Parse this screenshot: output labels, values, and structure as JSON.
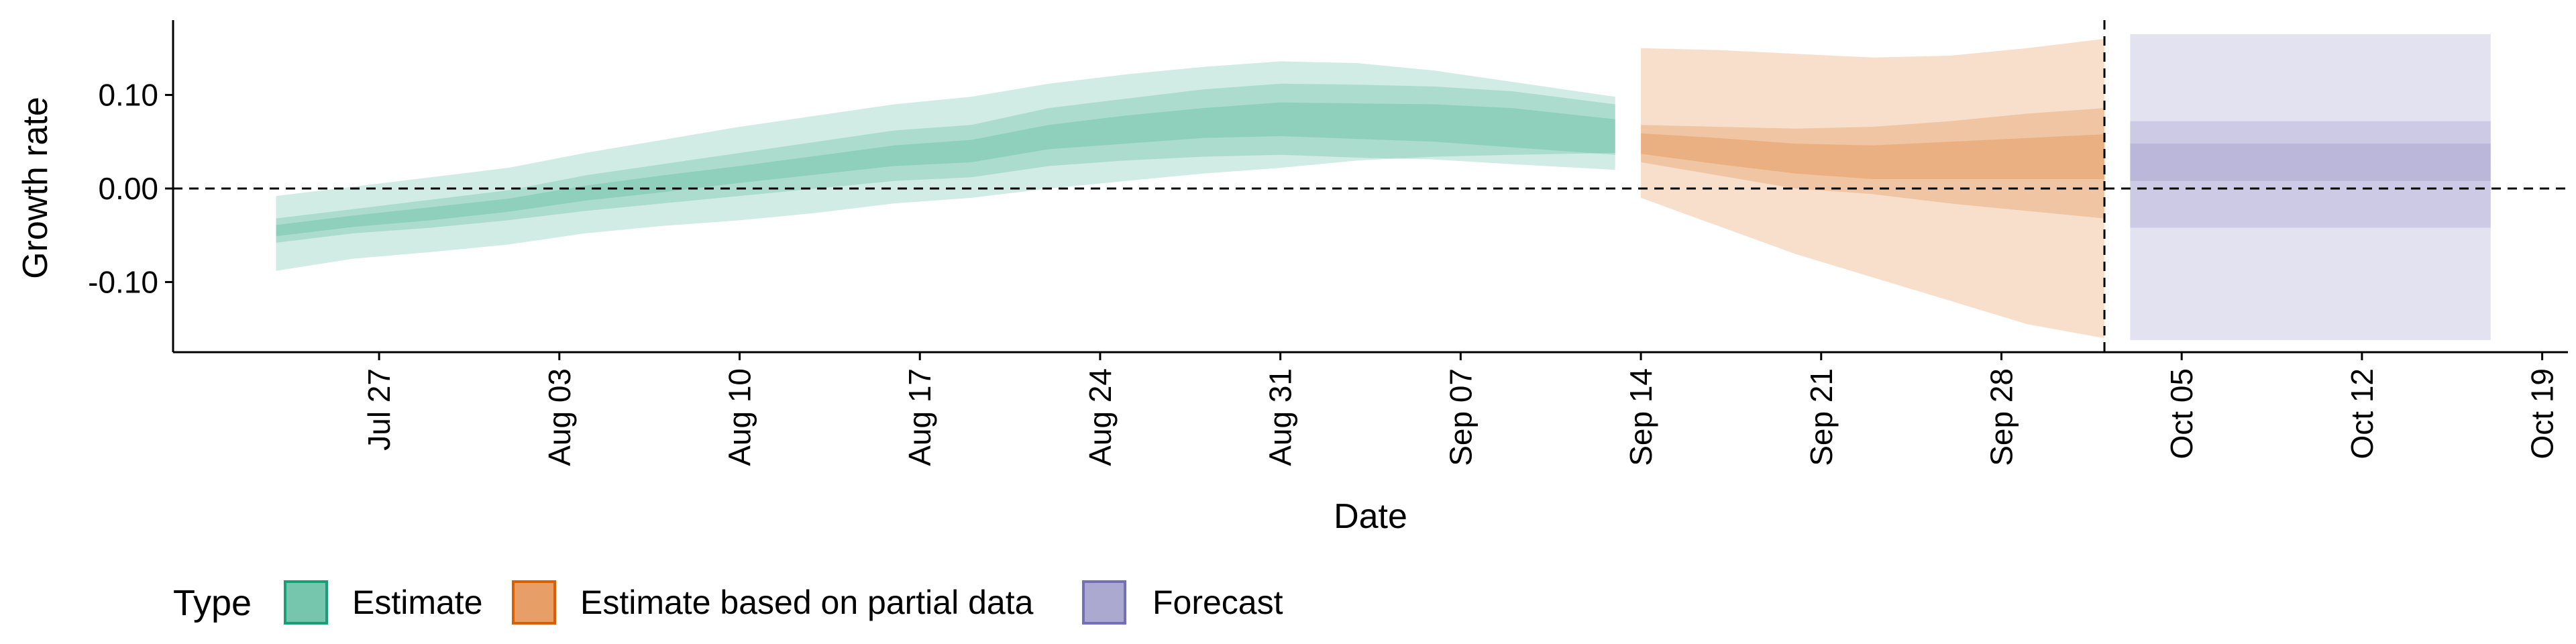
{
  "chart_data": {
    "type": "area",
    "title": "",
    "xlabel": "Date",
    "ylabel": "Growth rate",
    "xlim": [
      "2020-07-19",
      "2020-10-20"
    ],
    "ylim": [
      -0.175,
      0.18
    ],
    "y_ticks": [
      {
        "value": 0.1,
        "label": "0.10"
      },
      {
        "value": 0.0,
        "label": "0.00"
      },
      {
        "value": -0.1,
        "label": "-0.10"
      }
    ],
    "x_ticks": [
      {
        "value": "2020-07-27",
        "label": "Jul 27"
      },
      {
        "value": "2020-08-03",
        "label": "Aug 03"
      },
      {
        "value": "2020-08-10",
        "label": "Aug 10"
      },
      {
        "value": "2020-08-17",
        "label": "Aug 17"
      },
      {
        "value": "2020-08-24",
        "label": "Aug 24"
      },
      {
        "value": "2020-08-31",
        "label": "Aug 31"
      },
      {
        "value": "2020-09-07",
        "label": "Sep 07"
      },
      {
        "value": "2020-09-14",
        "label": "Sep 14"
      },
      {
        "value": "2020-09-21",
        "label": "Sep 21"
      },
      {
        "value": "2020-09-28",
        "label": "Sep 28"
      },
      {
        "value": "2020-10-05",
        "label": "Oct 05"
      },
      {
        "value": "2020-10-12",
        "label": "Oct 12"
      },
      {
        "value": "2020-10-19",
        "label": "Oct 19"
      }
    ],
    "reference_lines": [
      {
        "axis": "y",
        "value": 0.0,
        "style": "dashed"
      },
      {
        "axis": "x",
        "value": "2020-10-02",
        "style": "dashed"
      }
    ],
    "legend": {
      "title": "Type",
      "position": "bottom-left"
    },
    "series": [
      {
        "name": "Estimate",
        "color": "#1b9e77",
        "x": [
          "2020-07-23",
          "2020-07-26",
          "2020-07-29",
          "2020-08-01",
          "2020-08-04",
          "2020-08-07",
          "2020-08-10",
          "2020-08-13",
          "2020-08-16",
          "2020-08-19",
          "2020-08-22",
          "2020-08-25",
          "2020-08-28",
          "2020-08-31",
          "2020-09-03",
          "2020-09-06",
          "2020-09-09",
          "2020-09-13"
        ],
        "median": [
          -0.045,
          -0.035,
          -0.027,
          -0.018,
          -0.005,
          0.005,
          0.015,
          0.025,
          0.035,
          0.04,
          0.055,
          0.063,
          0.07,
          0.074,
          0.072,
          0.07,
          0.065,
          0.055
        ],
        "ci20": [
          [
            -0.051,
            -0.039
          ],
          [
            -0.041,
            -0.029
          ],
          [
            -0.034,
            -0.02
          ],
          [
            -0.025,
            -0.011
          ],
          [
            -0.013,
            0.003
          ],
          [
            -0.004,
            0.014
          ],
          [
            0.006,
            0.024
          ],
          [
            0.015,
            0.035
          ],
          [
            0.024,
            0.046
          ],
          [
            0.028,
            0.052
          ],
          [
            0.042,
            0.068
          ],
          [
            0.048,
            0.078
          ],
          [
            0.054,
            0.086
          ],
          [
            0.056,
            0.092
          ],
          [
            0.053,
            0.091
          ],
          [
            0.05,
            0.09
          ],
          [
            0.044,
            0.086
          ],
          [
            0.036,
            0.074
          ]
        ],
        "ci50": [
          [
            -0.058,
            -0.032
          ],
          [
            -0.048,
            -0.022
          ],
          [
            -0.042,
            -0.012
          ],
          [
            -0.034,
            -0.002
          ],
          [
            -0.024,
            0.014
          ],
          [
            -0.016,
            0.026
          ],
          [
            -0.008,
            0.038
          ],
          [
            0.0,
            0.05
          ],
          [
            0.008,
            0.062
          ],
          [
            0.012,
            0.068
          ],
          [
            0.024,
            0.086
          ],
          [
            0.03,
            0.096
          ],
          [
            0.034,
            0.106
          ],
          [
            0.036,
            0.112
          ],
          [
            0.033,
            0.111
          ],
          [
            0.031,
            0.109
          ],
          [
            0.026,
            0.104
          ],
          [
            0.02,
            0.09
          ]
        ],
        "ci90": [
          [
            -0.088,
            -0.008
          ],
          [
            -0.075,
            0.002
          ],
          [
            -0.068,
            0.012
          ],
          [
            -0.06,
            0.022
          ],
          [
            -0.048,
            0.038
          ],
          [
            -0.04,
            0.052
          ],
          [
            -0.034,
            0.066
          ],
          [
            -0.026,
            0.078
          ],
          [
            -0.016,
            0.09
          ],
          [
            -0.01,
            0.098
          ],
          [
            0.0,
            0.112
          ],
          [
            0.008,
            0.122
          ],
          [
            0.016,
            0.13
          ],
          [
            0.022,
            0.136
          ],
          [
            0.03,
            0.134
          ],
          [
            0.034,
            0.126
          ],
          [
            0.036,
            0.114
          ],
          [
            0.038,
            0.098
          ]
        ]
      },
      {
        "name": "Estimate based on partial data",
        "color": "#d95f02",
        "x": [
          "2020-09-14",
          "2020-09-17",
          "2020-09-20",
          "2020-09-23",
          "2020-09-26",
          "2020-09-29",
          "2020-10-02"
        ],
        "median": [
          0.048,
          0.04,
          0.032,
          0.028,
          0.03,
          0.032,
          0.034
        ],
        "ci20": [
          [
            0.037,
            0.059
          ],
          [
            0.026,
            0.054
          ],
          [
            0.016,
            0.048
          ],
          [
            0.01,
            0.046
          ],
          [
            0.01,
            0.05
          ],
          [
            0.01,
            0.054
          ],
          [
            0.01,
            0.058
          ]
        ],
        "ci50": [
          [
            0.028,
            0.068
          ],
          [
            0.014,
            0.066
          ],
          [
            0.0,
            0.064
          ],
          [
            -0.006,
            0.066
          ],
          [
            -0.016,
            0.072
          ],
          [
            -0.024,
            0.08
          ],
          [
            -0.032,
            0.086
          ]
        ],
        "ci90": [
          [
            -0.01,
            0.15
          ],
          [
            -0.04,
            0.148
          ],
          [
            -0.07,
            0.144
          ],
          [
            -0.095,
            0.14
          ],
          [
            -0.12,
            0.142
          ],
          [
            -0.145,
            0.15
          ],
          [
            -0.16,
            0.16
          ]
        ]
      },
      {
        "name": "Forecast",
        "color": "#7570b3",
        "x": [
          "2020-10-03",
          "2020-10-17"
        ],
        "median": [
          0.0,
          0.0
        ],
        "ci20": [
          [
            0.008,
            0.048
          ],
          [
            0.008,
            0.048
          ]
        ],
        "ci50": [
          [
            -0.042,
            0.072
          ],
          [
            -0.042,
            0.072
          ]
        ],
        "ci90": [
          [
            -0.162,
            0.165
          ],
          [
            -0.162,
            0.165
          ]
        ]
      }
    ]
  }
}
